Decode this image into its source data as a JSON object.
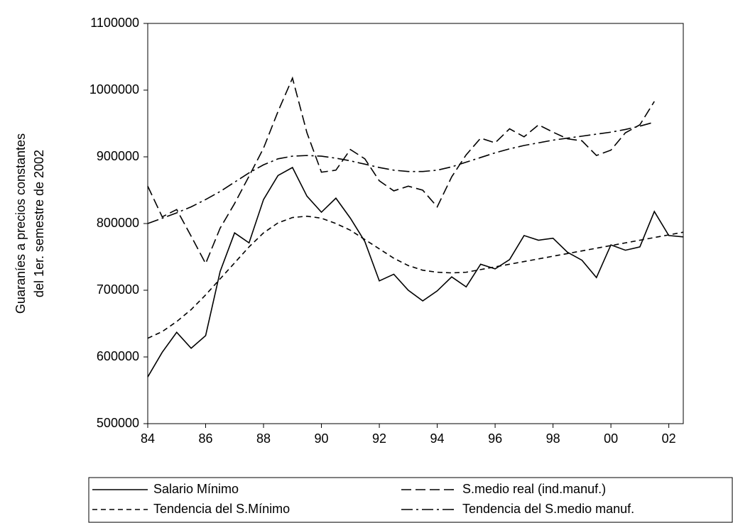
{
  "chart_data": {
    "type": "line",
    "ylabel": [
      "Guaraníes a precios constantes",
      "del 1er. semestre de 2002"
    ],
    "x": [
      1984,
      1984.5,
      1985,
      1985.5,
      1986,
      1986.5,
      1987,
      1987.5,
      1988,
      1988.5,
      1989,
      1989.5,
      1990,
      1990.5,
      1991,
      1991.5,
      1992,
      1992.5,
      1993,
      1993.5,
      1994,
      1994.5,
      1995,
      1995.5,
      1996,
      1996.5,
      1997,
      1997.5,
      1998,
      1998.5,
      1999,
      1999.5,
      2000,
      2000.5,
      2001,
      2001.5,
      2002,
      2002.5
    ],
    "xlim": [
      1984,
      2002.5
    ],
    "xticks": [
      {
        "value": 1984,
        "label": "84"
      },
      {
        "value": 1986,
        "label": "86"
      },
      {
        "value": 1988,
        "label": "88"
      },
      {
        "value": 1990,
        "label": "90"
      },
      {
        "value": 1992,
        "label": "92"
      },
      {
        "value": 1994,
        "label": "94"
      },
      {
        "value": 1996,
        "label": "96"
      },
      {
        "value": 1998,
        "label": "98"
      },
      {
        "value": 2000,
        "label": "00"
      },
      {
        "value": 2002,
        "label": "02"
      }
    ],
    "ylim": [
      500000,
      1100000
    ],
    "yticks": [
      500000,
      600000,
      700000,
      800000,
      900000,
      1000000,
      1100000
    ],
    "series": [
      {
        "name": "Salario Mínimo",
        "color": "#000000",
        "dash": "solid",
        "values": [
          570000,
          607000,
          637000,
          613000,
          632000,
          728000,
          786000,
          771000,
          836000,
          872000,
          884000,
          841000,
          817000,
          838000,
          808000,
          773000,
          714000,
          724000,
          700000,
          684000,
          699000,
          720000,
          705000,
          739000,
          732000,
          746000,
          782000,
          775000,
          778000,
          757000,
          745000,
          719000,
          768000,
          760000,
          765000,
          818000,
          782000,
          780000
        ]
      },
      {
        "name": "S.medio real (ind.manuf.)",
        "color": "#000000",
        "dash": "long",
        "values": [
          856000,
          810000,
          821000,
          781000,
          740000,
          793000,
          830000,
          871000,
          913000,
          968000,
          1018000,
          936000,
          877000,
          880000,
          911000,
          897000,
          864000,
          849000,
          856000,
          850000,
          825000,
          870000,
          903000,
          928000,
          921000,
          942000,
          930000,
          948000,
          937000,
          927000,
          924000,
          902000,
          910000,
          936000,
          948000,
          983000,
          null,
          null
        ]
      },
      {
        "name": "Tendencia del S.Mínimo",
        "color": "#000000",
        "dash": "short",
        "values": [
          628000,
          638000,
          653000,
          671000,
          693000,
          717000,
          741000,
          765000,
          786000,
          801000,
          809000,
          811000,
          808000,
          800000,
          790000,
          776000,
          762000,
          748000,
          737000,
          730000,
          727000,
          726000,
          727000,
          731000,
          735000,
          739000,
          743000,
          747000,
          751000,
          755000,
          759000,
          763000,
          767000,
          771000,
          775000,
          779000,
          783000,
          787000
        ]
      },
      {
        "name": "Tendencia del S.medio manuf.",
        "color": "#000000",
        "dash": "dashdot",
        "values": [
          800000,
          808000,
          816000,
          825000,
          836000,
          848000,
          862000,
          876000,
          888000,
          897000,
          901000,
          902000,
          901000,
          898000,
          894000,
          889000,
          884000,
          880000,
          878000,
          878000,
          880000,
          885000,
          892000,
          899000,
          906000,
          912000,
          917000,
          921000,
          925000,
          928000,
          931000,
          934000,
          937000,
          941000,
          946000,
          952000,
          null,
          null
        ]
      }
    ]
  }
}
